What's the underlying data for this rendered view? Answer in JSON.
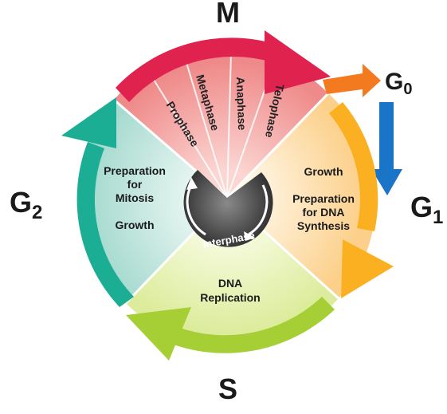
{
  "phases": {
    "m": "M",
    "g0_main": "G",
    "g0_sub": "0",
    "g1_main": "G",
    "g1_sub": "1",
    "g2_main": "G",
    "g2_sub": "2",
    "s": "S"
  },
  "mitosis_stages": [
    "Prophase",
    "Metaphase",
    "Anaphase",
    "Telophase"
  ],
  "g1_text": {
    "line1": "Growth",
    "line2": "Preparation",
    "line3": "for DNA",
    "line4": "Synthesis"
  },
  "g2_text": {
    "line1": "Preparation",
    "line2": "for",
    "line3": "Mitosis",
    "line4": "Growth"
  },
  "s_text": {
    "line1": "DNA",
    "line2": "Replication"
  },
  "center": {
    "label": "Interphase"
  },
  "colors": {
    "m_arrow": "#e0234e",
    "g0_arrow": "#f47a20",
    "g0_return": "#1a74c7",
    "g1_arrow": "#fbb021",
    "s_arrow": "#a6cf35",
    "g2_arrow": "#1bae94",
    "m_sector": "#f08888",
    "g1_sector": "#fde0b0",
    "s_sector": "#eaf2bf",
    "g2_sector": "#c7e7e0",
    "center": "#4a4a4a"
  }
}
